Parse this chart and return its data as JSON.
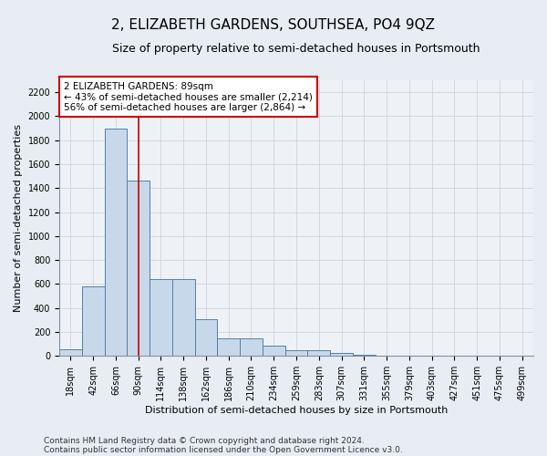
{
  "title": "2, ELIZABETH GARDENS, SOUTHSEA, PO4 9QZ",
  "subtitle": "Size of property relative to semi-detached houses in Portsmouth",
  "xlabel": "Distribution of semi-detached houses by size in Portsmouth",
  "ylabel": "Number of semi-detached properties",
  "footnote1": "Contains HM Land Registry data © Crown copyright and database right 2024.",
  "footnote2": "Contains public sector information licensed under the Open Government Licence v3.0.",
  "annotation_title": "2 ELIZABETH GARDENS: 89sqm",
  "annotation_line1": "← 43% of semi-detached houses are smaller (2,214)",
  "annotation_line2": "56% of semi-detached houses are larger (2,864) →",
  "bin_labels": [
    "18sqm",
    "42sqm",
    "66sqm",
    "90sqm",
    "114sqm",
    "138sqm",
    "162sqm",
    "186sqm",
    "210sqm",
    "234sqm",
    "259sqm",
    "283sqm",
    "307sqm",
    "331sqm",
    "355sqm",
    "379sqm",
    "403sqm",
    "427sqm",
    "451sqm",
    "475sqm",
    "499sqm"
  ],
  "bin_left_edges": [
    6,
    30,
    54,
    78,
    102,
    126,
    150,
    174,
    198,
    222,
    246,
    270,
    294,
    318,
    342,
    366,
    390,
    414,
    438,
    462,
    486
  ],
  "bin_width": 24,
  "bar_values": [
    55,
    580,
    1900,
    1460,
    640,
    640,
    305,
    150,
    150,
    85,
    50,
    50,
    25,
    10,
    0,
    0,
    0,
    0,
    0,
    0,
    0
  ],
  "bar_color": "#c8d8eb",
  "bar_edge_color": "#5080a8",
  "vline_x": 90,
  "vline_color": "#cc0000",
  "ylim": [
    0,
    2300
  ],
  "yticks": [
    0,
    200,
    400,
    600,
    800,
    1000,
    1200,
    1400,
    1600,
    1800,
    2000,
    2200
  ],
  "bg_color": "#e8edf3",
  "plot_bg_color": "#eef2f7",
  "grid_color": "#c5cdd8",
  "annotation_box_facecolor": "#ffffff",
  "annotation_box_edgecolor": "#cc0000",
  "title_fontsize": 11,
  "subtitle_fontsize": 9,
  "axis_label_fontsize": 8,
  "tick_fontsize": 7,
  "annotation_fontsize": 7.5,
  "footnote_fontsize": 6.5
}
